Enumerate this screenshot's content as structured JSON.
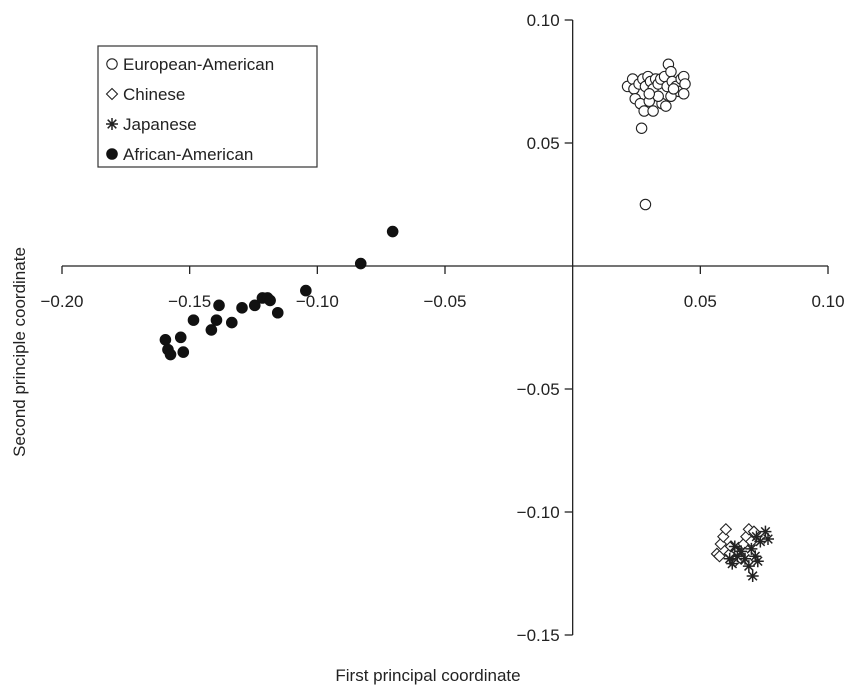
{
  "chart_data": {
    "type": "scatter",
    "title": "",
    "xlabel": "First principal coordinate",
    "ylabel": "Second principle coordinate",
    "xlim": [
      -0.2,
      0.1
    ],
    "ylim": [
      -0.15,
      0.1
    ],
    "xticks": [
      -0.2,
      -0.15,
      -0.1,
      -0.05,
      0.05,
      0.1
    ],
    "xtick_labels": [
      "-0.20",
      "-0.15",
      "-0.10",
      "-0.05",
      "0.05",
      "0.10"
    ],
    "yticks": [
      0.1,
      0.05,
      -0.05,
      -0.1,
      -0.15
    ],
    "ytick_labels": [
      "0.10",
      "0.05",
      "-0.05",
      "-0.10",
      "-0.15"
    ],
    "grid": false,
    "legend_position": "top-left",
    "series": [
      {
        "name": "European-American",
        "marker": "open-circle",
        "points": [
          [
            0.0215,
            0.073
          ],
          [
            0.0235,
            0.076
          ],
          [
            0.024,
            0.072
          ],
          [
            0.026,
            0.074
          ],
          [
            0.0275,
            0.076
          ],
          [
            0.0285,
            0.073
          ],
          [
            0.0295,
            0.077
          ],
          [
            0.0305,
            0.075
          ],
          [
            0.0315,
            0.072
          ],
          [
            0.0325,
            0.076
          ],
          [
            0.0335,
            0.074
          ],
          [
            0.0345,
            0.076
          ],
          [
            0.036,
            0.077
          ],
          [
            0.037,
            0.073
          ],
          [
            0.0375,
            0.082
          ],
          [
            0.0385,
            0.079
          ],
          [
            0.039,
            0.075
          ],
          [
            0.0405,
            0.073
          ],
          [
            0.0415,
            0.071
          ],
          [
            0.0425,
            0.076
          ],
          [
            0.0435,
            0.077
          ],
          [
            0.044,
            0.074
          ],
          [
            0.0245,
            0.068
          ],
          [
            0.0265,
            0.066
          ],
          [
            0.028,
            0.063
          ],
          [
            0.03,
            0.067
          ],
          [
            0.0315,
            0.063
          ],
          [
            0.035,
            0.066
          ],
          [
            0.0365,
            0.065
          ],
          [
            0.0385,
            0.069
          ],
          [
            0.0435,
            0.07
          ],
          [
            0.0395,
            0.072
          ],
          [
            0.0335,
            0.069
          ],
          [
            0.03,
            0.07
          ],
          [
            0.027,
            0.056
          ],
          [
            0.0285,
            0.025
          ]
        ]
      },
      {
        "name": "Chinese",
        "marker": "open-diamond",
        "points": [
          [
            0.0565,
            -0.117
          ],
          [
            0.058,
            -0.113
          ],
          [
            0.059,
            -0.11
          ],
          [
            0.06,
            -0.107
          ],
          [
            0.0615,
            -0.117
          ],
          [
            0.062,
            -0.114
          ],
          [
            0.0635,
            -0.12
          ],
          [
            0.0645,
            -0.116
          ],
          [
            0.066,
            -0.119
          ],
          [
            0.067,
            -0.113
          ],
          [
            0.068,
            -0.11
          ],
          [
            0.069,
            -0.107
          ],
          [
            0.07,
            -0.112
          ],
          [
            0.071,
            -0.108
          ],
          [
            0.0575,
            -0.118
          ]
        ]
      },
      {
        "name": "Japanese",
        "marker": "asterisk",
        "points": [
          [
            0.0615,
            -0.119
          ],
          [
            0.0625,
            -0.121
          ],
          [
            0.0635,
            -0.114
          ],
          [
            0.0645,
            -0.118
          ],
          [
            0.066,
            -0.116
          ],
          [
            0.0675,
            -0.119
          ],
          [
            0.069,
            -0.122
          ],
          [
            0.07,
            -0.115
          ],
          [
            0.0705,
            -0.126
          ],
          [
            0.0715,
            -0.118
          ],
          [
            0.072,
            -0.11
          ],
          [
            0.0735,
            -0.112
          ],
          [
            0.0755,
            -0.108
          ],
          [
            0.0765,
            -0.111
          ],
          [
            0.0725,
            -0.12
          ]
        ]
      },
      {
        "name": "African-American",
        "marker": "filled-circle",
        "points": [
          [
            -0.1595,
            -0.03
          ],
          [
            -0.1585,
            -0.034
          ],
          [
            -0.1575,
            -0.036
          ],
          [
            -0.1535,
            -0.029
          ],
          [
            -0.1525,
            -0.035
          ],
          [
            -0.1485,
            -0.022
          ],
          [
            -0.1415,
            -0.026
          ],
          [
            -0.1395,
            -0.022
          ],
          [
            -0.1385,
            -0.016
          ],
          [
            -0.1335,
            -0.023
          ],
          [
            -0.1295,
            -0.017
          ],
          [
            -0.1245,
            -0.016
          ],
          [
            -0.1215,
            -0.013
          ],
          [
            -0.1195,
            -0.013
          ],
          [
            -0.1185,
            -0.014
          ],
          [
            -0.1155,
            -0.019
          ],
          [
            -0.1045,
            -0.01
          ],
          [
            -0.083,
            0.001
          ],
          [
            -0.0705,
            0.014
          ]
        ]
      }
    ]
  }
}
